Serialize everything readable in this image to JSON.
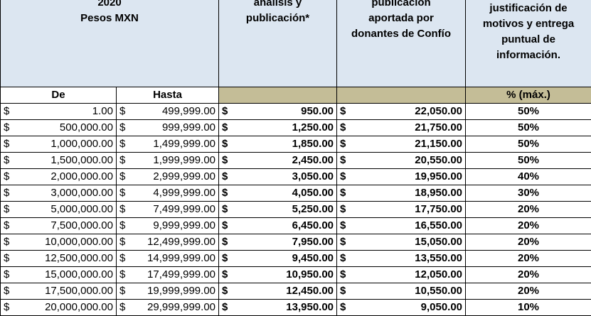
{
  "header": {
    "range_title_lines": [
      "2020",
      "Pesos MXN"
    ],
    "col_analysis_lines": [
      "análisis y",
      "publicación*"
    ],
    "col_donors_lines": [
      "publicación",
      "aportada por",
      "donantes de Confío"
    ],
    "col_justification_lines": [
      "justificación de",
      "motivos y entrega",
      "puntual de",
      "información."
    ]
  },
  "subheader": {
    "from": "De",
    "to": "Hasta",
    "pct": "% (máx.)"
  },
  "currency_symbol": "$",
  "rows": [
    {
      "from": "1.00",
      "to": "499,999.00",
      "analysis": "950.00",
      "donors": "22,050.00",
      "pct": "50%"
    },
    {
      "from": "500,000.00",
      "to": "999,999.00",
      "analysis": "1,250.00",
      "donors": "21,750.00",
      "pct": "50%"
    },
    {
      "from": "1,000,000.00",
      "to": "1,499,999.00",
      "analysis": "1,850.00",
      "donors": "21,150.00",
      "pct": "50%"
    },
    {
      "from": "1,500,000.00",
      "to": "1,999,999.00",
      "analysis": "2,450.00",
      "donors": "20,550.00",
      "pct": "50%"
    },
    {
      "from": "2,000,000.00",
      "to": "2,999,999.00",
      "analysis": "3,050.00",
      "donors": "19,950.00",
      "pct": "40%"
    },
    {
      "from": "3,000,000.00",
      "to": "4,999,999.00",
      "analysis": "4,050.00",
      "donors": "18,950.00",
      "pct": "30%"
    },
    {
      "from": "5,000,000.00",
      "to": "7,499,999.00",
      "analysis": "5,250.00",
      "donors": "17,750.00",
      "pct": "20%"
    },
    {
      "from": "7,500,000.00",
      "to": "9,999,999.00",
      "analysis": "6,450.00",
      "donors": "16,550.00",
      "pct": "20%"
    },
    {
      "from": "10,000,000.00",
      "to": "12,499,999.00",
      "analysis": "7,950.00",
      "donors": "15,050.00",
      "pct": "20%"
    },
    {
      "from": "12,500,000.00",
      "to": "14,999,999.00",
      "analysis": "9,450.00",
      "donors": "13,550.00",
      "pct": "20%"
    },
    {
      "from": "15,000,000.00",
      "to": "17,499,999.00",
      "analysis": "10,950.00",
      "donors": "12,050.00",
      "pct": "20%"
    },
    {
      "from": "17,500,000.00",
      "to": "19,999,999.00",
      "analysis": "12,450.00",
      "donors": "10,550.00",
      "pct": "20%"
    },
    {
      "from": "20,000,000.00",
      "to": "29,999,999.00",
      "analysis": "13,950.00",
      "donors": "9,050.00",
      "pct": "10%"
    }
  ],
  "colors": {
    "header_bg": "#dce6f1",
    "subheader_olive": "#c4bd97",
    "grid": "#000000"
  }
}
